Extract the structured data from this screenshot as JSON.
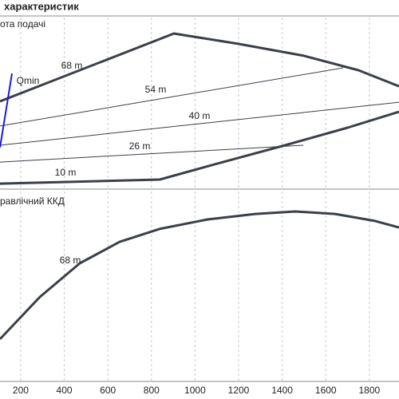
{
  "title": "характеристик",
  "chart_data": [
    {
      "type": "line",
      "title": "ота подачі",
      "xlim": [
        105,
        1936
      ],
      "ylim": [
        0,
        100
      ],
      "series": [
        {
          "name": "68 m",
          "color": "#3a3f4a",
          "x": [
            105,
            903,
            1200,
            1500,
            1750,
            1936
          ],
          "values": [
            50.7,
            90.6,
            84.5,
            77.5,
            69,
            59.6
          ]
        },
        {
          "name": "54 m",
          "color": "#3a3f4a",
          "x": [
            105,
            1680
          ],
          "values": [
            36.2,
            70.4
          ]
        },
        {
          "name": "40 m",
          "color": "#3a3f4a",
          "x": [
            105,
            1936
          ],
          "values": [
            24.9,
            50.2
          ]
        },
        {
          "name": "26 m",
          "color": "#3a3f4a",
          "x": [
            105,
            1497
          ],
          "values": [
            15,
            24.9
          ]
        },
        {
          "name": "10 m",
          "color": "#3a3f4a",
          "x": [
            105,
            838,
            1100,
            1400,
            1700,
            1936
          ],
          "values": [
            2.3,
            4.7,
            14,
            24.4,
            35.2,
            44.6
          ]
        },
        {
          "name": "Qmin",
          "color": "#1a1adc",
          "x": [
            105,
            160
          ],
          "values": [
            23.5,
            67.1
          ]
        }
      ]
    },
    {
      "type": "line",
      "title": "равлічний ККД",
      "xlim": [
        105,
        1936
      ],
      "ylim": [
        0,
        100
      ],
      "xticks": [
        200,
        400,
        600,
        800,
        1000,
        1200,
        1400,
        1600,
        1800
      ],
      "series": [
        {
          "name": "68 m",
          "color": "#3a3f4a",
          "x": [
            105,
            288,
            471,
            654,
            837,
            1057,
            1277,
            1460,
            1643,
            1826,
            1936
          ],
          "values": [
            22.3,
            44.5,
            62.2,
            73.5,
            80.3,
            85.3,
            88.2,
            89.5,
            88.2,
            84.5,
            81.1
          ]
        }
      ]
    }
  ]
}
